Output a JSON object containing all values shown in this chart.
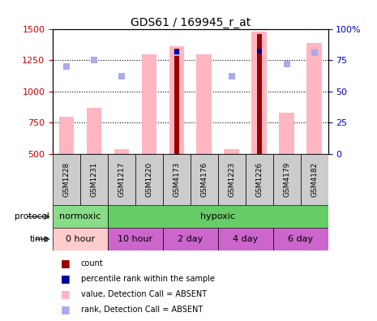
{
  "title": "GDS61 / 169945_r_at",
  "samples": [
    "GSM1228",
    "GSM1231",
    "GSM1217",
    "GSM1220",
    "GSM4173",
    "GSM4176",
    "GSM1223",
    "GSM1226",
    "GSM4179",
    "GSM4182"
  ],
  "value_absent": [
    800,
    870,
    540,
    1300,
    1360,
    1300,
    540,
    1480,
    830,
    1390
  ],
  "rank_absent": [
    1200,
    1250,
    1120,
    null,
    1310,
    null,
    1120,
    null,
    1220,
    1310
  ],
  "count": [
    null,
    null,
    null,
    null,
    1340,
    null,
    null,
    1460,
    null,
    null
  ],
  "percentile_rank": [
    null,
    null,
    null,
    null,
    1315,
    null,
    null,
    1320,
    null,
    null
  ],
  "ylim_left": [
    500,
    1500
  ],
  "ylim_right": [
    0,
    100
  ],
  "yticks_left": [
    500,
    750,
    1000,
    1250,
    1500
  ],
  "yticks_right": [
    0,
    25,
    50,
    75,
    100
  ],
  "value_absent_color": "#FFB6C1",
  "rank_absent_color": "#AAAAEE",
  "count_color": "#990000",
  "percentile_color": "#000099",
  "left_axis_color": "#CC0000",
  "right_axis_color": "#0000CC",
  "sample_band_color": "#CCCCCC",
  "protocol_normoxic_color": "#88DD88",
  "protocol_hypoxic_color": "#66CC66",
  "time_0hour_color": "#FFCCCC",
  "time_other_color": "#CC66CC",
  "legend_items": [
    {
      "color": "#990000",
      "label": "count"
    },
    {
      "color": "#000099",
      "label": "percentile rank within the sample"
    },
    {
      "color": "#FFB6C1",
      "label": "value, Detection Call = ABSENT"
    },
    {
      "color": "#AAAAEE",
      "label": "rank, Detection Call = ABSENT"
    }
  ]
}
